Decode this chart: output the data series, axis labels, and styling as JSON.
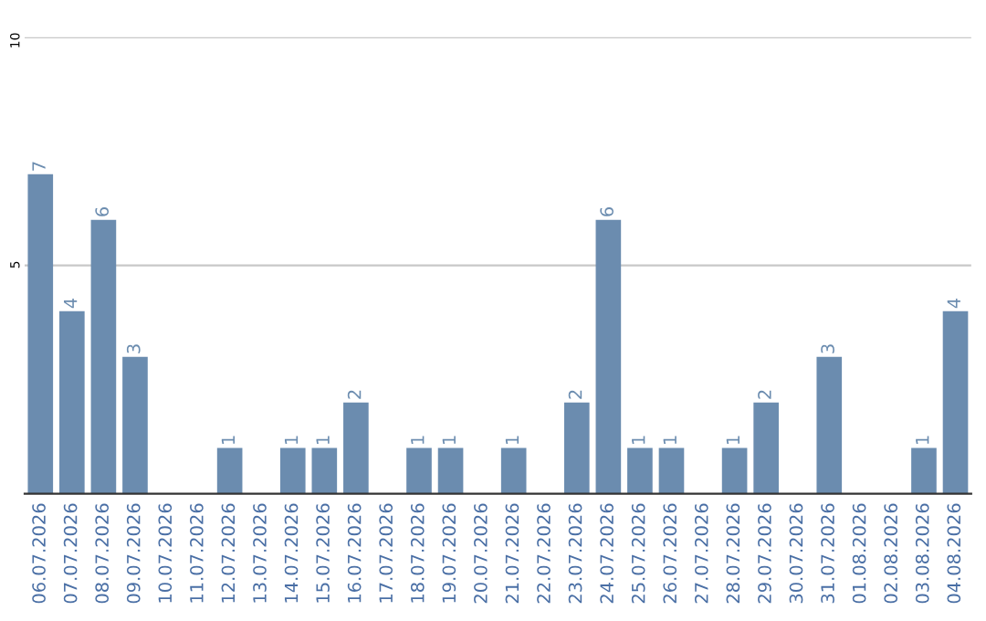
{
  "chart_data": {
    "type": "bar",
    "categories": [
      "06.07.2026",
      "07.07.2026",
      "08.07.2026",
      "09.07.2026",
      "10.07.2026",
      "11.07.2026",
      "12.07.2026",
      "13.07.2026",
      "14.07.2026",
      "15.07.2026",
      "16.07.2026",
      "17.07.2026",
      "18.07.2026",
      "19.07.2026",
      "20.07.2026",
      "21.07.2026",
      "22.07.2026",
      "23.07.2026",
      "24.07.2026",
      "25.07.2026",
      "26.07.2026",
      "27.07.2026",
      "28.07.2026",
      "29.07.2026",
      "30.07.2026",
      "31.07.2026",
      "01.08.2026",
      "02.08.2026",
      "03.08.2026",
      "04.08.2026"
    ],
    "values": [
      7,
      4,
      6,
      3,
      0,
      0,
      1,
      0,
      1,
      1,
      2,
      0,
      1,
      1,
      0,
      1,
      0,
      2,
      6,
      1,
      1,
      0,
      1,
      2,
      0,
      3,
      0,
      0,
      1,
      4
    ],
    "value_labels": [
      "7",
      "4",
      "6",
      "3",
      null,
      null,
      "1",
      null,
      "1",
      "1",
      "2",
      null,
      "1",
      "1",
      null,
      "1",
      null,
      "2",
      "6",
      "1",
      "1",
      null,
      "1",
      "2",
      null,
      "3",
      null,
      null,
      "1",
      "4"
    ],
    "color": "#6b8caf",
    "ylim": [
      0,
      10
    ],
    "yticks": [
      5,
      10
    ],
    "grid": "y"
  }
}
